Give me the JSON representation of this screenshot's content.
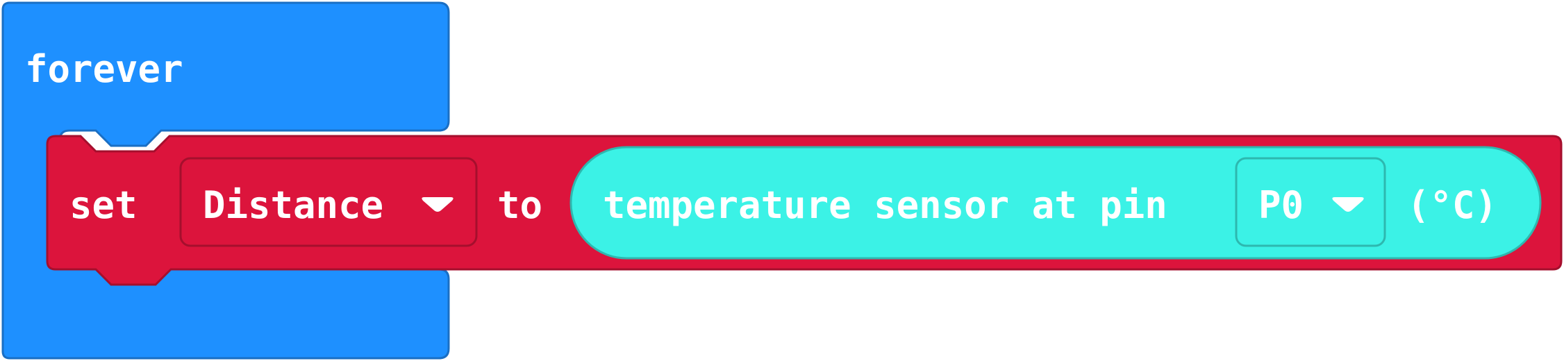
{
  "forever_block": {
    "label": "forever",
    "color": "#1E90FF",
    "stroke": "#1A6FC4"
  },
  "set_block": {
    "set_label": "set",
    "variable": "Distance",
    "to_label": "to",
    "color": "#DC143C",
    "stroke": "#A50F2D"
  },
  "sensor_block": {
    "label": "temperature sensor at pin",
    "pin": "P0",
    "unit": "(°C)",
    "color": "#3BF2E6",
    "stroke": "#2DB8AF"
  },
  "icons": {
    "variable_dropdown": "dropdown-arrow-icon",
    "pin_dropdown": "dropdown-arrow-icon"
  }
}
